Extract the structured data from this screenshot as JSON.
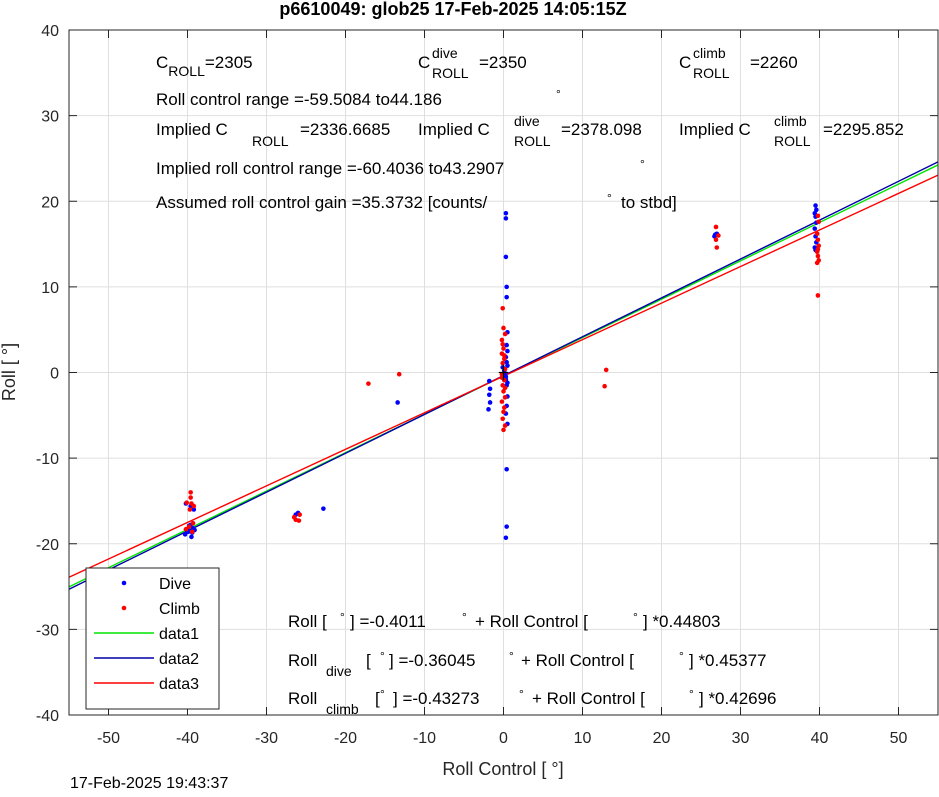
{
  "chart_data": {
    "type": "scatter",
    "title": "p6610049: glob25 17-Feb-2025 14:05:15Z",
    "xlabel": "Roll Control [   °]",
    "ylabel": "Roll [   °]",
    "xlim": [
      -55,
      55
    ],
    "ylim": [
      -40,
      40
    ],
    "xticks": [
      -50,
      -40,
      -30,
      -20,
      -10,
      0,
      10,
      20,
      30,
      40,
      50
    ],
    "yticks": [
      -40,
      -30,
      -20,
      -10,
      0,
      10,
      20,
      30,
      40
    ],
    "grid": true,
    "timestamp": "17-Feb-2025 19:43:37",
    "legend": {
      "placement": "bottom-left",
      "entries": [
        "Dive",
        "Climb",
        "data1",
        "data2",
        "data3"
      ]
    },
    "series": [
      {
        "name": "Dive",
        "kind": "points",
        "color": "#0000ff",
        "points": [
          [
            -40.2,
            -15.3
          ],
          [
            -39.6,
            -15.6
          ],
          [
            -39.2,
            -16.0
          ],
          [
            -39.6,
            -17.8
          ],
          [
            -39.3,
            -18.2
          ],
          [
            -39.9,
            -18.6
          ],
          [
            -40.3,
            -18.9
          ],
          [
            -39.5,
            -19.2
          ],
          [
            -39.1,
            -18.4
          ],
          [
            -39.8,
            -17.9
          ],
          [
            -40.0,
            -18.3
          ],
          [
            -39.4,
            -18.7
          ],
          [
            -26.3,
            -16.6
          ],
          [
            -26.0,
            -16.4
          ],
          [
            -22.8,
            -15.9
          ],
          [
            -13.4,
            -3.5
          ],
          [
            -1.8,
            -1.0
          ],
          [
            -1.7,
            -1.9
          ],
          [
            -1.8,
            -2.6
          ],
          [
            -1.7,
            -3.5
          ],
          [
            -1.9,
            -4.3
          ],
          [
            0.1,
            0.2
          ],
          [
            0.2,
            -0.3
          ],
          [
            -0.1,
            0.6
          ],
          [
            0.3,
            -0.8
          ],
          [
            0.5,
            -1.2
          ],
          [
            0.3,
            18.6
          ],
          [
            0.3,
            18.0
          ],
          [
            0.3,
            13.5
          ],
          [
            0.4,
            10.0
          ],
          [
            0.4,
            8.8
          ],
          [
            0.5,
            4.7
          ],
          [
            0.4,
            3.2
          ],
          [
            0.5,
            2.5
          ],
          [
            0.3,
            1.8
          ],
          [
            0.4,
            1.2
          ],
          [
            0.5,
            0.8
          ],
          [
            0.3,
            -0.5
          ],
          [
            0.4,
            -1.5
          ],
          [
            0.5,
            -2.8
          ],
          [
            0.4,
            -3.9
          ],
          [
            0.3,
            -4.8
          ],
          [
            0.5,
            -6.0
          ],
          [
            0.4,
            -11.3
          ],
          [
            0.4,
            -18.0
          ],
          [
            0.3,
            -19.3
          ],
          [
            26.7,
            15.9
          ],
          [
            27.0,
            16.2
          ],
          [
            26.8,
            16.1
          ],
          [
            39.5,
            19.5
          ],
          [
            39.6,
            19.0
          ],
          [
            39.4,
            18.6
          ],
          [
            39.5,
            18.2
          ],
          [
            39.6,
            17.5
          ],
          [
            39.4,
            16.8
          ],
          [
            39.5,
            15.9
          ],
          [
            39.6,
            15.2
          ],
          [
            39.5,
            14.3
          ],
          [
            39.4,
            14.6
          ]
        ]
      },
      {
        "name": "Climb",
        "kind": "points",
        "color": "#ff0000",
        "points": [
          [
            -39.6,
            -14.0
          ],
          [
            -39.6,
            -14.6
          ],
          [
            -40.1,
            -15.2
          ],
          [
            -39.5,
            -15.3
          ],
          [
            -39.2,
            -15.6
          ],
          [
            -39.7,
            -16.0
          ],
          [
            -39.3,
            -17.6
          ],
          [
            -39.8,
            -18.0
          ],
          [
            -40.2,
            -18.3
          ],
          [
            -39.4,
            -18.6
          ],
          [
            -26.5,
            -16.9
          ],
          [
            -26.3,
            -17.2
          ],
          [
            -25.9,
            -17.3
          ],
          [
            -25.8,
            -16.6
          ],
          [
            -17.1,
            -1.3
          ],
          [
            -13.2,
            -0.2
          ],
          [
            -0.2,
            3.8
          ],
          [
            -0.1,
            3.3
          ],
          [
            0.0,
            2.8
          ],
          [
            -0.2,
            2.2
          ],
          [
            0.1,
            1.6
          ],
          [
            -0.1,
            1.1
          ],
          [
            0.2,
            0.4
          ],
          [
            -0.2,
            -0.2
          ],
          [
            0.1,
            -0.9
          ],
          [
            -0.1,
            -1.5
          ],
          [
            0.0,
            -2.2
          ],
          [
            0.2,
            -2.9
          ],
          [
            -0.2,
            -3.4
          ],
          [
            0.1,
            -4.1
          ],
          [
            0.0,
            -4.6
          ],
          [
            -0.1,
            -5.4
          ],
          [
            0.2,
            -6.2
          ],
          [
            0.0,
            -6.7
          ],
          [
            -0.1,
            7.5
          ],
          [
            0.0,
            5.2
          ],
          [
            0.2,
            4.5
          ],
          [
            0.1,
            2.0
          ],
          [
            -0.2,
            -0.6
          ],
          [
            0.2,
            -1.8
          ],
          [
            13.0,
            0.3
          ],
          [
            12.8,
            -1.6
          ],
          [
            26.9,
            17.0
          ],
          [
            27.2,
            16.0
          ],
          [
            26.9,
            15.5
          ],
          [
            27.0,
            14.6
          ],
          [
            39.8,
            18.3
          ],
          [
            39.9,
            17.6
          ],
          [
            39.7,
            16.2
          ],
          [
            39.8,
            15.5
          ],
          [
            39.9,
            14.8
          ],
          [
            39.8,
            14.4
          ],
          [
            39.7,
            14.1
          ],
          [
            39.8,
            13.6
          ],
          [
            39.9,
            13.1
          ],
          [
            39.7,
            12.8
          ],
          [
            39.8,
            9.0
          ]
        ]
      },
      {
        "name": "data1",
        "kind": "line",
        "color": "#00e600",
        "intercept": -0.4011,
        "slope": 0.44803
      },
      {
        "name": "data2",
        "kind": "line",
        "color": "#0000a8",
        "intercept": -0.36045,
        "slope": 0.45377
      },
      {
        "name": "data3",
        "kind": "line",
        "color": "#ff0000",
        "intercept": -0.43273,
        "slope": 0.42696
      }
    ],
    "annotations": {
      "c_roll": {
        "c": "C",
        "sub": "ROLL",
        "val": "=2305"
      },
      "c_roll_dive": {
        "c": "C",
        "sup": "dive",
        "sub": "ROLL",
        "val": "=2350"
      },
      "c_roll_climb": {
        "c": "C",
        "sup": "climb",
        "sub": "ROLL",
        "val": "=2260"
      },
      "roll_range": "Roll control range =-59.5084 to44.186",
      "implied_all": {
        "pre": "Implied C",
        "sub": "ROLL",
        "val": "=2336.6685"
      },
      "implied_dive": {
        "pre": "Implied C",
        "sup": "dive",
        "sub": "ROLL",
        "val": "=2378.098"
      },
      "implied_climb": {
        "pre": "Implied C",
        "sup": "climb",
        "sub": "ROLL",
        "val": "=2295.852"
      },
      "implied_range": "Implied roll control range =-60.4036 to43.2907",
      "gain_pre": "Assumed roll control gain =35.3732 [counts/",
      "gain_post": "to stbd]",
      "eq_all": {
        "a": "Roll [",
        "b": "] =-0.4011",
        "c": "+ Roll Control [",
        "d": "] *0.44803"
      },
      "eq_dive": {
        "a": "Roll",
        "sub": "dive",
        "b": "[",
        "c": "] =-0.36045",
        "d": "+ Roll Control [",
        "e": "] *0.45377"
      },
      "eq_climb": {
        "a": "Roll",
        "sub": "climb",
        "b": "[",
        "c": "] =-0.43273",
        "d": "+ Roll Control [",
        "e": "] *0.42696"
      },
      "degree": "°"
    }
  }
}
